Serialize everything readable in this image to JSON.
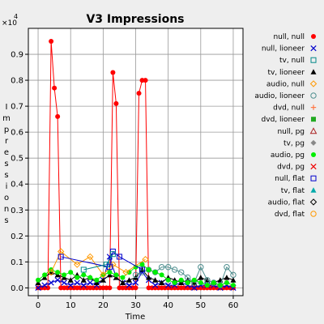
{
  "chart_data": {
    "type": "line",
    "title": "V3 Impressions",
    "xlabel": "Time",
    "ylabel": "Impressions",
    "y_multiplier": "×10^4",
    "y_multiplier_base": "×10",
    "y_multiplier_exp": "4",
    "xlim": [
      -3,
      63
    ],
    "ylim": [
      -0.03,
      1.0
    ],
    "x_ticks": [
      0,
      10,
      20,
      30,
      40,
      50,
      60
    ],
    "y_ticks": [
      0.0,
      0.1,
      0.2,
      0.3,
      0.4,
      0.5,
      0.6,
      0.7,
      0.8,
      0.9
    ],
    "y_tick_labels": [
      "0.0",
      "0.1",
      "0.2",
      "0.3",
      "0.4",
      "0.5",
      "0.6",
      "0.7",
      "0.8",
      "0.9"
    ],
    "grid": true,
    "legend_position": "right",
    "series": [
      {
        "name": "null, null",
        "color": "#ff0000",
        "marker": "dot",
        "x": [
          0,
          1,
          2,
          3,
          4,
          5,
          6,
          7,
          8,
          9,
          10,
          11,
          12,
          13,
          14,
          15,
          16,
          17,
          18,
          19,
          20,
          21,
          22,
          23,
          24,
          25,
          26,
          27,
          28,
          29,
          30,
          31,
          32,
          33,
          34,
          35,
          36,
          37,
          38,
          39,
          40,
          41,
          42,
          43,
          44,
          45,
          46,
          47,
          48,
          49,
          50,
          51,
          52,
          53,
          54,
          55,
          56,
          57,
          58,
          59,
          60
        ],
        "y": [
          0,
          0,
          0,
          0,
          0.95,
          0.77,
          0.66,
          0,
          0,
          0,
          0,
          0,
          0,
          0,
          0,
          0,
          0,
          0,
          0,
          0,
          0,
          0,
          0,
          0.83,
          0.71,
          0,
          0,
          0,
          0,
          0,
          0,
          0.75,
          0.8,
          0.8,
          0,
          0,
          0,
          0,
          0,
          0,
          0,
          0,
          0,
          0,
          0,
          0,
          0,
          0,
          0,
          0,
          0,
          0,
          0,
          0,
          0,
          0,
          0,
          0,
          0,
          0,
          0
        ]
      },
      {
        "name": "null, lioneer",
        "color": "#0000cc",
        "marker": "x",
        "x": [
          0,
          2,
          4,
          6,
          8,
          10,
          12,
          14,
          16,
          18,
          20,
          22,
          24,
          26,
          28,
          30,
          32,
          34,
          36,
          38,
          40,
          42,
          44,
          46,
          48,
          50,
          52,
          54,
          56,
          58,
          60
        ],
        "y": [
          0,
          0.01,
          0.02,
          0.03,
          0.02,
          0.01,
          0.02,
          0.01,
          0.02,
          0.01,
          0.03,
          0.12,
          0.04,
          0.02,
          0.01,
          0.02,
          0.06,
          0.03,
          0.01,
          0.02,
          0.01,
          0.01,
          0.02,
          0.01,
          0,
          0.01,
          0.01,
          0.01,
          0,
          0.01,
          0
        ]
      },
      {
        "name": "tv, lioneer",
        "color": "#000000",
        "marker": "triangle",
        "x": [
          0,
          2,
          4,
          6,
          8,
          10,
          12,
          14,
          16,
          18,
          20,
          22,
          24,
          26,
          28,
          30,
          32,
          34,
          36,
          38,
          40,
          42,
          44,
          46,
          48,
          50,
          52,
          54,
          56,
          58,
          60
        ],
        "y": [
          0.02,
          0.04,
          0.06,
          0.05,
          0.04,
          0.03,
          0.05,
          0.03,
          0.04,
          0.02,
          0.03,
          0.05,
          0.04,
          0.02,
          0.03,
          0.04,
          0.07,
          0.04,
          0.03,
          0.02,
          0.04,
          0.03,
          0.02,
          0.03,
          0.02,
          0.04,
          0.03,
          0.02,
          0.03,
          0.04,
          0.03
        ]
      },
      {
        "name": "audio, lioneer",
        "color": "#4f8f8f",
        "marker": "circle-open",
        "x": [
          30,
          32,
          34,
          36,
          38,
          40,
          42,
          44,
          46,
          48,
          50,
          52,
          54,
          56,
          58,
          60
        ],
        "y": [
          0.05,
          0.06,
          0.07,
          0.06,
          0.08,
          0.08,
          0.07,
          0.06,
          0.04,
          0.02,
          0.08,
          0.03,
          0.02,
          0.01,
          0.08,
          0.05
        ]
      },
      {
        "name": "audio, pg",
        "color": "#00ee00",
        "marker": "dot",
        "x": [
          0,
          2,
          4,
          6,
          8,
          10,
          12,
          14,
          16,
          18,
          20,
          22,
          24,
          26,
          28,
          30,
          32,
          34,
          36,
          38,
          40,
          42,
          44,
          46,
          48,
          50,
          52,
          54,
          56,
          58,
          60
        ],
        "y": [
          0.03,
          0.05,
          0.07,
          0.06,
          0.05,
          0.06,
          0.04,
          0.05,
          0.04,
          0.03,
          0.05,
          0.06,
          0.05,
          0.04,
          0.06,
          0.08,
          0.09,
          0.07,
          0.06,
          0.05,
          0.03,
          0.02,
          0.03,
          0.02,
          0.03,
          0.02,
          0.01,
          0.02,
          0.01,
          0.02,
          0.01
        ]
      },
      {
        "name": "audio, null",
        "color": "#ff9900",
        "marker": "diamond-open",
        "x": [
          4,
          7,
          12,
          16,
          20,
          23,
          27,
          33
        ],
        "y": [
          0.06,
          0.14,
          0.09,
          0.12,
          0.05,
          0.09,
          0.06,
          0.11
        ]
      },
      {
        "name": "null, flat",
        "color": "#0000cc",
        "marker": "square-open",
        "x": [
          7,
          22,
          23,
          25,
          32
        ],
        "y": [
          0.12,
          0.08,
          0.14,
          0.12,
          0.07
        ]
      },
      {
        "name": "tv, null",
        "color": "#008888",
        "marker": "square-open",
        "x": [
          14,
          21,
          23
        ],
        "y": [
          0.07,
          0.09,
          0.13
        ]
      }
    ],
    "legend": [
      {
        "name": "null, null",
        "color": "#ff0000",
        "marker": "dot"
      },
      {
        "name": "null, lioneer",
        "color": "#0000cc",
        "marker": "x"
      },
      {
        "name": "tv, null",
        "color": "#008888",
        "marker": "square-open"
      },
      {
        "name": "tv, lioneer",
        "color": "#000000",
        "marker": "triangle"
      },
      {
        "name": "audio, null",
        "color": "#ff9900",
        "marker": "diamond-open"
      },
      {
        "name": "audio, lioneer",
        "color": "#4f8f8f",
        "marker": "circle-open"
      },
      {
        "name": "dvd, null",
        "color": "#ff7744",
        "marker": "plus"
      },
      {
        "name": "dvd, lioneer",
        "color": "#22aa22",
        "marker": "square"
      },
      {
        "name": "null, pg",
        "color": "#aa2222",
        "marker": "triangle-open"
      },
      {
        "name": "tv, pg",
        "color": "#888888",
        "marker": "diamond"
      },
      {
        "name": "audio, pg",
        "color": "#00ee00",
        "marker": "dot"
      },
      {
        "name": "dvd, pg",
        "color": "#ee0000",
        "marker": "x"
      },
      {
        "name": "null, flat",
        "color": "#0000cc",
        "marker": "square-open"
      },
      {
        "name": "tv, flat",
        "color": "#00aaaa",
        "marker": "triangle"
      },
      {
        "name": "audio, flat",
        "color": "#000000",
        "marker": "diamond-open"
      },
      {
        "name": "dvd, flat",
        "color": "#ff9900",
        "marker": "circle-open"
      }
    ]
  }
}
